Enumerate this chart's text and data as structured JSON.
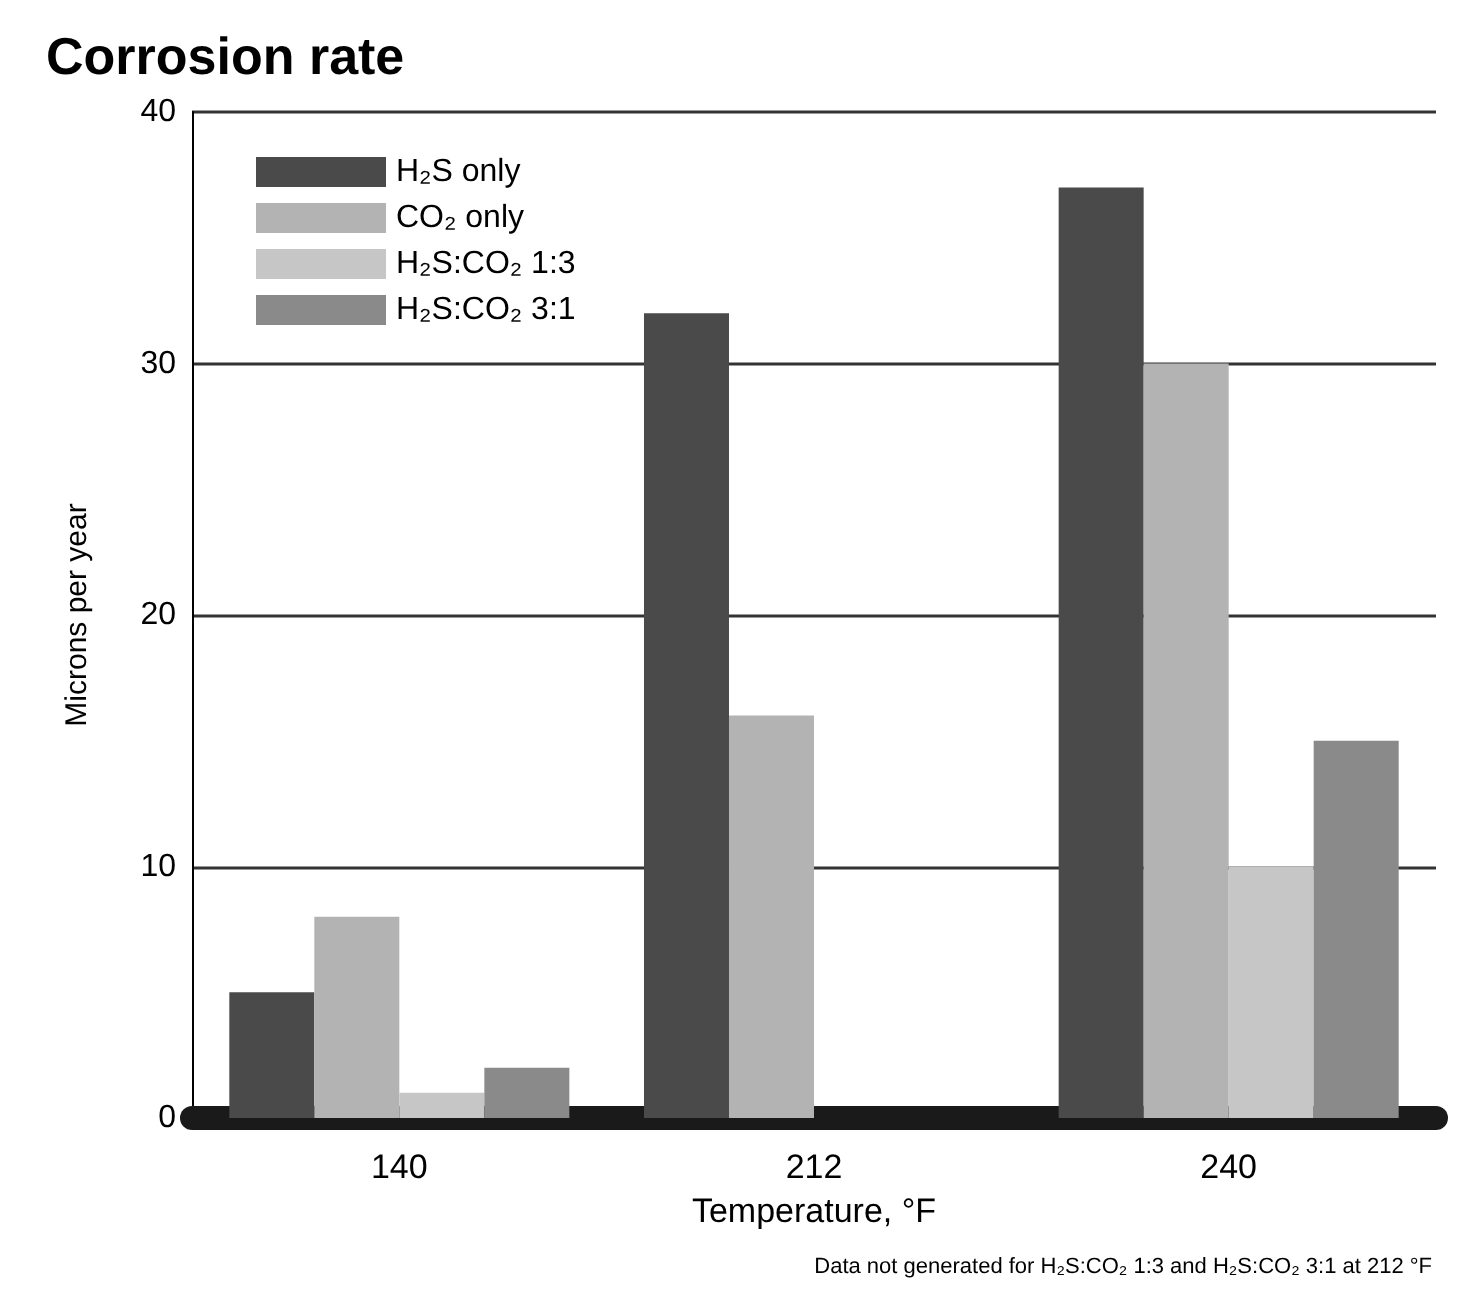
{
  "chart_data": {
    "type": "bar",
    "title": "Corrosion rate",
    "xlabel": "Temperature, °F",
    "ylabel": "Microns per year",
    "categories": [
      "140",
      "212",
      "240"
    ],
    "series": [
      {
        "name": "H₂S only",
        "color": "#4a4a4a",
        "values": [
          5,
          32,
          37
        ]
      },
      {
        "name": "CO₂ only",
        "color": "#b3b3b3",
        "values": [
          8,
          16,
          30
        ]
      },
      {
        "name": "H₂S:CO₂ 1:3",
        "color": "#c6c6c6",
        "values": [
          1,
          null,
          10
        ]
      },
      {
        "name": "H₂S:CO₂ 3:1",
        "color": "#8a8a8a",
        "values": [
          2,
          null,
          15
        ]
      }
    ],
    "ylim": [
      0,
      40
    ],
    "yticks": [
      0,
      10,
      20,
      30,
      40
    ],
    "grid": "y",
    "legend": "top left",
    "annotations": [
      "Data not generated for H₂S:CO₂ 1:3 and H₂S:CO₂ 3:1 at 212 °F"
    ]
  }
}
